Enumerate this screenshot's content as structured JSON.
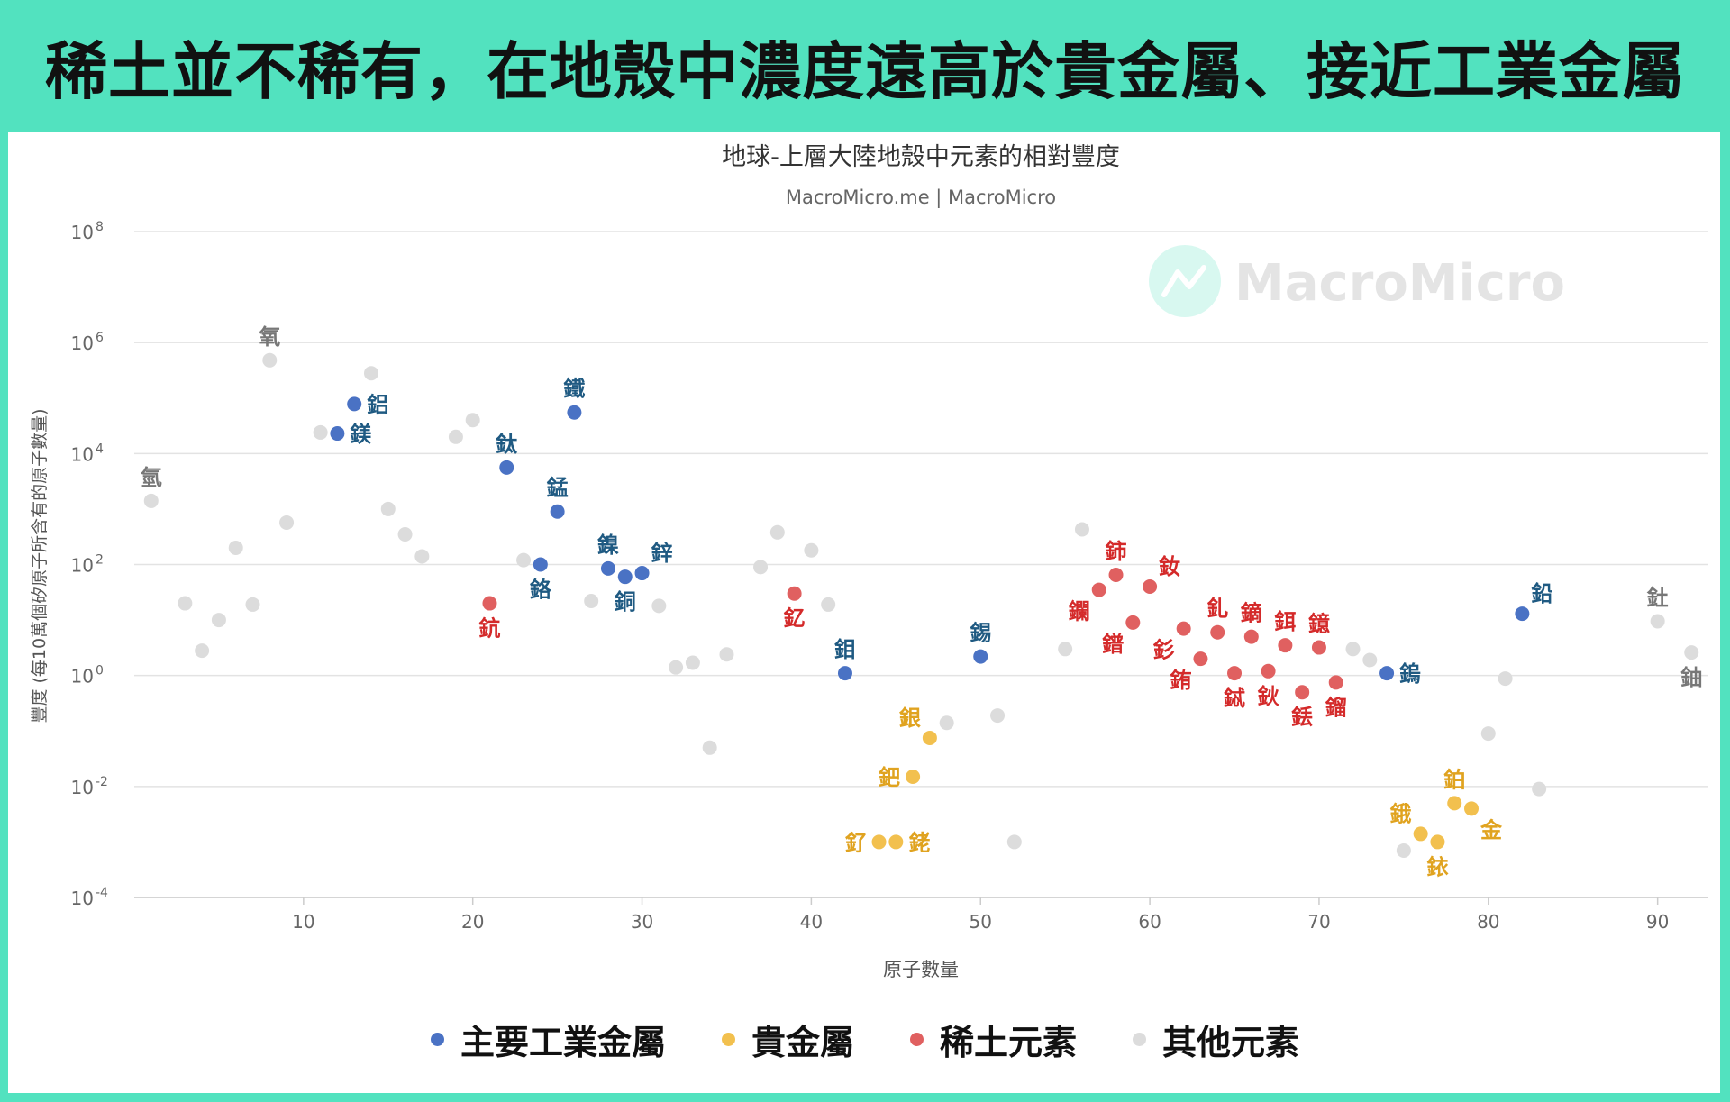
{
  "headline": "稀土並不稀有，在地殼中濃度遠高於貴金屬、接近工業金屬",
  "colors": {
    "frame": "#52e2bf",
    "industrial": "#4a72c4",
    "precious": "#f2c04e",
    "rare_earth": "#e06060",
    "other": "#dcdcdc"
  },
  "watermark": "MacroMicro",
  "chart_data": {
    "type": "scatter",
    "title": "地球-上層大陸地殼中元素的相對豐度",
    "subtitle": "MacroMicro.me | MacroMicro",
    "xlabel": "原子數量",
    "ylabel": "豐度 (每10萬個矽原子所含有的原子數量)",
    "xlim": [
      0,
      93
    ],
    "ylim": [
      0.0001,
      100000000
    ],
    "y_scale": "log",
    "x_ticks": [
      10,
      20,
      30,
      40,
      50,
      60,
      70,
      80,
      90
    ],
    "y_ticks": [
      {
        "value": 0.0001,
        "base": "10",
        "exp": "-4"
      },
      {
        "value": 0.01,
        "base": "10",
        "exp": "-2"
      },
      {
        "value": 1,
        "base": "10",
        "exp": "0"
      },
      {
        "value": 100,
        "base": "10",
        "exp": "2"
      },
      {
        "value": 10000,
        "base": "10",
        "exp": "4"
      },
      {
        "value": 1000000,
        "base": "10",
        "exp": "6"
      },
      {
        "value": 100000000,
        "base": "10",
        "exp": "8"
      }
    ],
    "grid": true,
    "legend_position": "bottom",
    "series": [
      {
        "name": "主要工業金屬",
        "color": "#4a72c4",
        "label_color": "#1f5a82",
        "points": [
          {
            "x": 12,
            "y": 23000,
            "label": "鎂",
            "pos": "r"
          },
          {
            "x": 13,
            "y": 78000,
            "label": "鋁",
            "pos": "r"
          },
          {
            "x": 22,
            "y": 5600,
            "label": "鈦",
            "pos": "t"
          },
          {
            "x": 24,
            "y": 100,
            "label": "鉻",
            "pos": "b"
          },
          {
            "x": 25,
            "y": 900,
            "label": "錳",
            "pos": "t"
          },
          {
            "x": 26,
            "y": 55000,
            "label": "鐵",
            "pos": "t"
          },
          {
            "x": 28,
            "y": 85,
            "label": "鎳",
            "pos": "t"
          },
          {
            "x": 29,
            "y": 60,
            "label": "銅",
            "pos": "b"
          },
          {
            "x": 30,
            "y": 70,
            "label": "鋅",
            "pos": "tr"
          },
          {
            "x": 42,
            "y": 1.1,
            "label": "鉬",
            "pos": "t"
          },
          {
            "x": 50,
            "y": 2.2,
            "label": "錫",
            "pos": "t"
          },
          {
            "x": 74,
            "y": 1.1,
            "label": "鎢",
            "pos": "r"
          },
          {
            "x": 82,
            "y": 13,
            "label": "鉛",
            "pos": "tr"
          }
        ]
      },
      {
        "name": "貴金屬",
        "color": "#f2c04e",
        "label_color": "#e0a320",
        "points": [
          {
            "x": 44,
            "y": 0.001,
            "label": "釕",
            "pos": "l"
          },
          {
            "x": 45,
            "y": 0.001,
            "label": "銠",
            "pos": "r"
          },
          {
            "x": 46,
            "y": 0.015,
            "label": "鈀",
            "pos": "l"
          },
          {
            "x": 47,
            "y": 0.075,
            "label": "銀",
            "pos": "tl"
          },
          {
            "x": 76,
            "y": 0.0014,
            "label": "鋨",
            "pos": "tl"
          },
          {
            "x": 77,
            "y": 0.001,
            "label": "銥",
            "pos": "b"
          },
          {
            "x": 78,
            "y": 0.005,
            "label": "鉑",
            "pos": "t"
          },
          {
            "x": 79,
            "y": 0.004,
            "label": "金",
            "pos": "br"
          }
        ]
      },
      {
        "name": "稀土元素",
        "color": "#e06060",
        "label_color": "#d42a2a",
        "points": [
          {
            "x": 21,
            "y": 20,
            "label": "鈧",
            "pos": "b"
          },
          {
            "x": 39,
            "y": 30,
            "label": "釔",
            "pos": "b"
          },
          {
            "x": 57,
            "y": 35,
            "label": "鑭",
            "pos": "bl"
          },
          {
            "x": 58,
            "y": 65,
            "label": "鈰",
            "pos": "t"
          },
          {
            "x": 59,
            "y": 9,
            "label": "鐠",
            "pos": "bl"
          },
          {
            "x": 60,
            "y": 40,
            "label": "釹",
            "pos": "tr"
          },
          {
            "x": 62,
            "y": 7,
            "label": "釤",
            "pos": "bl"
          },
          {
            "x": 63,
            "y": 2,
            "label": "銪",
            "pos": "bl"
          },
          {
            "x": 64,
            "y": 6,
            "label": "釓",
            "pos": "t"
          },
          {
            "x": 65,
            "y": 1.1,
            "label": "鋱",
            "pos": "b"
          },
          {
            "x": 66,
            "y": 5,
            "label": "鏑",
            "pos": "t"
          },
          {
            "x": 67,
            "y": 1.2,
            "label": "鈥",
            "pos": "b"
          },
          {
            "x": 68,
            "y": 3.5,
            "label": "鉺",
            "pos": "t"
          },
          {
            "x": 69,
            "y": 0.5,
            "label": "銩",
            "pos": "b"
          },
          {
            "x": 70,
            "y": 3.2,
            "label": "鐿",
            "pos": "t"
          },
          {
            "x": 71,
            "y": 0.75,
            "label": "鎦",
            "pos": "b"
          }
        ]
      },
      {
        "name": "其他元素",
        "color": "#dcdcdc",
        "label_color": "#777777",
        "points": [
          {
            "x": 1,
            "y": 1400,
            "label": "氫",
            "pos": "t"
          },
          {
            "x": 3,
            "y": 20
          },
          {
            "x": 4,
            "y": 2.8
          },
          {
            "x": 5,
            "y": 10
          },
          {
            "x": 6,
            "y": 200
          },
          {
            "x": 7,
            "y": 19
          },
          {
            "x": 8,
            "y": 480000,
            "label": "氧",
            "pos": "t"
          },
          {
            "x": 9,
            "y": 570
          },
          {
            "x": 11,
            "y": 24000
          },
          {
            "x": 14,
            "y": 280000
          },
          {
            "x": 15,
            "y": 1000
          },
          {
            "x": 16,
            "y": 350
          },
          {
            "x": 17,
            "y": 140
          },
          {
            "x": 19,
            "y": 20000
          },
          {
            "x": 20,
            "y": 40000
          },
          {
            "x": 23,
            "y": 120
          },
          {
            "x": 27,
            "y": 22
          },
          {
            "x": 31,
            "y": 18
          },
          {
            "x": 32,
            "y": 1.4
          },
          {
            "x": 33,
            "y": 1.7
          },
          {
            "x": 34,
            "y": 0.05
          },
          {
            "x": 35,
            "y": 2.4
          },
          {
            "x": 37,
            "y": 90
          },
          {
            "x": 38,
            "y": 380
          },
          {
            "x": 40,
            "y": 180
          },
          {
            "x": 41,
            "y": 19
          },
          {
            "x": 48,
            "y": 0.14
          },
          {
            "x": 51,
            "y": 0.19
          },
          {
            "x": 52,
            "y": 0.001
          },
          {
            "x": 55,
            "y": 3
          },
          {
            "x": 56,
            "y": 430
          },
          {
            "x": 72,
            "y": 3
          },
          {
            "x": 73,
            "y": 1.9
          },
          {
            "x": 75,
            "y": 0.0007
          },
          {
            "x": 80,
            "y": 0.09
          },
          {
            "x": 81,
            "y": 0.88
          },
          {
            "x": 83,
            "y": 0.009
          },
          {
            "x": 90,
            "y": 9.5,
            "label": "釷",
            "pos": "t"
          },
          {
            "x": 92,
            "y": 2.6,
            "label": "鈾",
            "pos": "b"
          }
        ]
      }
    ]
  }
}
